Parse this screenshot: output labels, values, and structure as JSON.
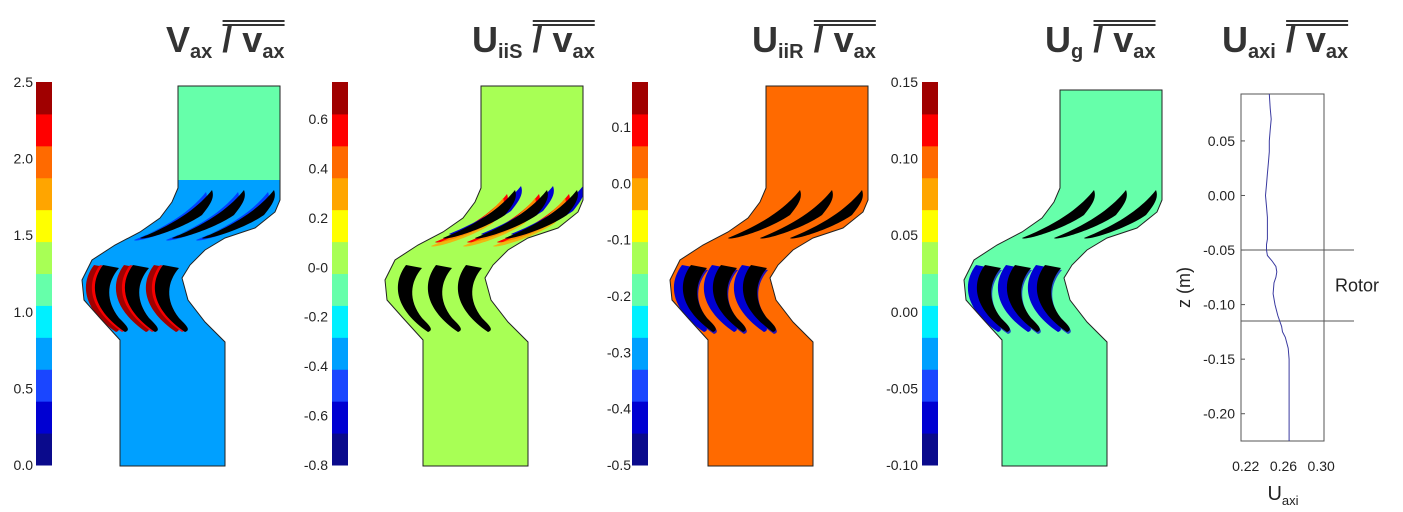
{
  "figure": {
    "panels": [
      {
        "title": {
          "main": "V",
          "sub": "ax",
          "denom_main": "v",
          "denom_sub": "ax"
        },
        "colorbar": {
          "ticks": [
            "2.5",
            "2.0",
            "1.5",
            "1.0",
            "0.5",
            "0.0"
          ],
          "min": 0.0,
          "max": 2.5
        },
        "background_level": 0.3,
        "upstream_level": 0.45
      },
      {
        "title": {
          "main": "U",
          "sub": "iiS",
          "denom_main": "v",
          "denom_sub": "ax"
        },
        "colorbar": {
          "ticks": [
            "0.6",
            "0.4",
            "0.2",
            "0-0",
            "-0.2",
            "-0.4",
            "-0.6",
            "-0.8"
          ],
          "min": -0.8,
          "max": 0.75
        },
        "background_level": 0.58,
        "upstream_level": 0.58
      },
      {
        "title": {
          "main": "U",
          "sub": "iiR",
          "denom_main": "v",
          "denom_sub": "ax"
        },
        "colorbar": {
          "ticks": [
            "0.1",
            "0.0",
            "-0.1",
            "-0.2",
            "-0.3",
            "-0.4",
            "-0.5"
          ],
          "min": -0.5,
          "max": 0.18
        },
        "background_level": 0.78,
        "upstream_level": 0.78
      },
      {
        "title": {
          "main": "U",
          "sub": "g",
          "denom_main": "v",
          "denom_sub": "ax"
        },
        "colorbar": {
          "ticks": [
            "0.15",
            "0.10",
            "0.05",
            "0.00",
            "-0.05",
            "-0.10"
          ],
          "min": -0.1,
          "max": 0.15
        },
        "background_level": 0.45,
        "upstream_level": 0.45
      }
    ],
    "colormap": [
      "#0a0a8c",
      "#0000d2",
      "#1a46ff",
      "#00a0ff",
      "#00f0ff",
      "#66ffaa",
      "#a8ff55",
      "#ffff00",
      "#ffa500",
      "#ff6a00",
      "#ff0000",
      "#a00000"
    ],
    "colors": {
      "profile_line": "#3a3aa0",
      "blade": "#000000"
    }
  },
  "chart_data": {
    "type": "line",
    "title": {
      "main": "U",
      "sub": "axi",
      "denom_main": "v",
      "denom_sub": "ax"
    },
    "xlabel": {
      "main": "U",
      "sub": "axi"
    },
    "ylabel": "z (m)",
    "xlim": [
      0.215,
      0.303
    ],
    "ylim": [
      -0.225,
      0.093
    ],
    "xticks": [
      0.22,
      0.26,
      0.3
    ],
    "xtick_labels": [
      "0.22",
      "0.26",
      "0.30"
    ],
    "yticks": [
      0.05,
      0.0,
      -0.05,
      -0.1,
      -0.15,
      -0.2
    ],
    "ytick_labels": [
      "0.05",
      "0.00",
      "-0.05",
      "-0.10",
      "-0.15",
      "-0.20"
    ],
    "annotation": "Rotor",
    "region_bounds": [
      -0.05,
      -0.115
    ],
    "series": [
      {
        "x": [
          0.245,
          0.246,
          0.247,
          0.246,
          0.245,
          0.245,
          0.244,
          0.243,
          0.242,
          0.241,
          0.242,
          0.243,
          0.243,
          0.243,
          0.242,
          0.242,
          0.243,
          0.248,
          0.252,
          0.253,
          0.252,
          0.25,
          0.249,
          0.251,
          0.254,
          0.256,
          0.258,
          0.259,
          0.262,
          0.265,
          0.266,
          0.266,
          0.266,
          0.266,
          0.266,
          0.266
        ],
        "y": [
          0.093,
          0.08,
          0.07,
          0.06,
          0.05,
          0.04,
          0.03,
          0.02,
          0.01,
          0.0,
          -0.01,
          -0.02,
          -0.03,
          -0.04,
          -0.045,
          -0.05,
          -0.055,
          -0.06,
          -0.065,
          -0.07,
          -0.075,
          -0.08,
          -0.09,
          -0.1,
          -0.11,
          -0.115,
          -0.12,
          -0.125,
          -0.13,
          -0.14,
          -0.15,
          -0.16,
          -0.18,
          -0.2,
          -0.21,
          -0.225
        ]
      }
    ]
  }
}
